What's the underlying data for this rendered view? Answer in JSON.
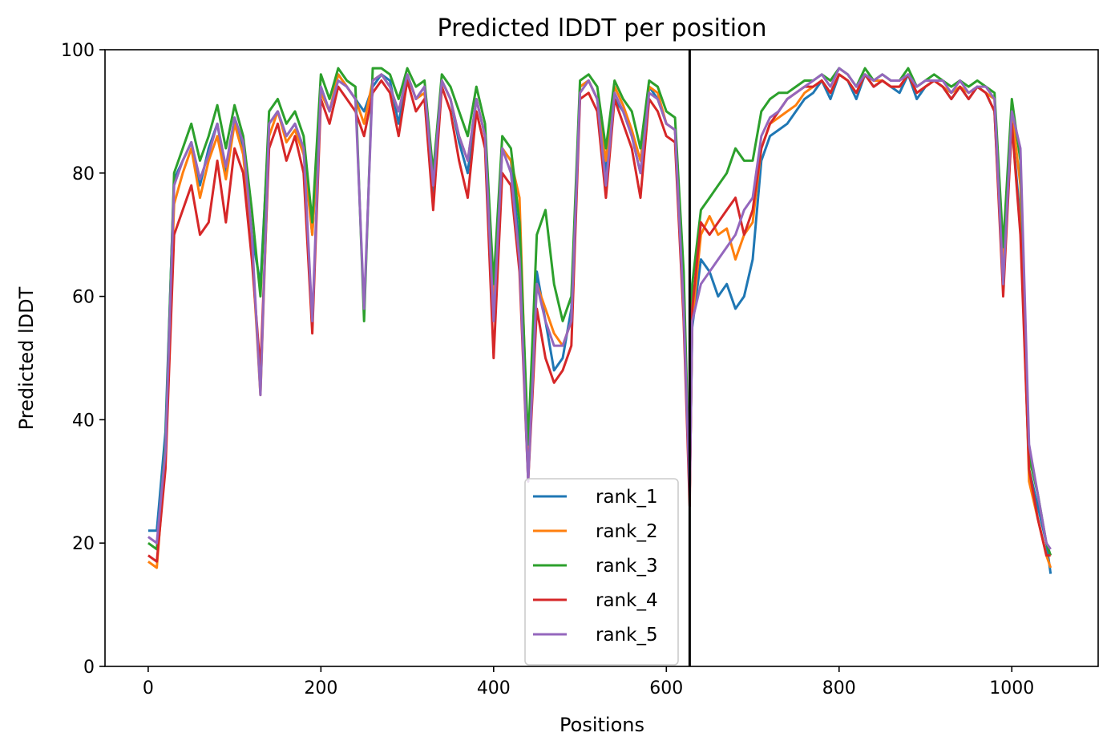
{
  "chart_data": {
    "type": "line",
    "title": "Predicted lDDT per position",
    "xlabel": "Positions",
    "ylabel": "Predicted lDDT",
    "xlim": [
      -50,
      1100
    ],
    "ylim": [
      0,
      100
    ],
    "xticks": [
      0,
      200,
      400,
      600,
      800,
      1000
    ],
    "yticks": [
      0,
      20,
      40,
      60,
      80,
      100
    ],
    "grid": false,
    "legend_position": "lower center",
    "chain_break_x": 627,
    "x": [
      0,
      10,
      20,
      30,
      40,
      50,
      60,
      70,
      80,
      90,
      100,
      110,
      120,
      130,
      140,
      150,
      160,
      170,
      180,
      190,
      200,
      210,
      220,
      230,
      240,
      250,
      260,
      270,
      280,
      290,
      300,
      310,
      320,
      330,
      340,
      350,
      360,
      370,
      380,
      390,
      400,
      410,
      420,
      430,
      440,
      450,
      460,
      470,
      480,
      490,
      500,
      510,
      520,
      530,
      540,
      550,
      560,
      570,
      580,
      590,
      600,
      610,
      620,
      627,
      630,
      640,
      650,
      660,
      670,
      680,
      690,
      700,
      710,
      720,
      730,
      740,
      750,
      760,
      770,
      780,
      790,
      800,
      810,
      820,
      830,
      840,
      850,
      860,
      870,
      880,
      890,
      900,
      910,
      920,
      930,
      940,
      950,
      960,
      970,
      980,
      990,
      1000,
      1010,
      1020,
      1030,
      1040,
      1045
    ],
    "series": [
      {
        "name": "rank_1",
        "color": "#1f77b4",
        "values": [
          22,
          22,
          38,
          79,
          82,
          85,
          78,
          84,
          88,
          80,
          89,
          84,
          70,
          62,
          88,
          90,
          86,
          88,
          84,
          70,
          94,
          90,
          96,
          94,
          92,
          90,
          94,
          96,
          95,
          88,
          96,
          92,
          94,
          76,
          95,
          92,
          85,
          80,
          92,
          86,
          60,
          84,
          82,
          68,
          34,
          64,
          56,
          48,
          50,
          58,
          94,
          95,
          92,
          80,
          92,
          90,
          86,
          80,
          94,
          92,
          88,
          87,
          60,
          28,
          55,
          66,
          64,
          60,
          62,
          58,
          60,
          66,
          82,
          86,
          87,
          88,
          90,
          92,
          93,
          95,
          92,
          96,
          95,
          92,
          96,
          94,
          95,
          94,
          93,
          96,
          92,
          94,
          95,
          94,
          92,
          94,
          92,
          94,
          93,
          90,
          62,
          88,
          72,
          32,
          26,
          20,
          15
        ]
      },
      {
        "name": "rank_2",
        "color": "#ff7f0e",
        "values": [
          17,
          16,
          34,
          75,
          80,
          84,
          76,
          82,
          86,
          79,
          88,
          83,
          68,
          44,
          86,
          90,
          85,
          87,
          83,
          70,
          93,
          90,
          96,
          94,
          92,
          88,
          95,
          96,
          94,
          90,
          96,
          92,
          93,
          78,
          95,
          92,
          86,
          82,
          92,
          86,
          58,
          84,
          82,
          76,
          32,
          62,
          58,
          54,
          52,
          56,
          94,
          95,
          92,
          82,
          94,
          91,
          87,
          82,
          94,
          93,
          88,
          87,
          60,
          28,
          56,
          70,
          73,
          70,
          71,
          66,
          70,
          72,
          84,
          88,
          89,
          90,
          91,
          93,
          94,
          95,
          93,
          96,
          95,
          93,
          96,
          95,
          95,
          94,
          94,
          96,
          93,
          94,
          95,
          94,
          93,
          94,
          93,
          94,
          93,
          92,
          64,
          90,
          78,
          30,
          24,
          18,
          16
        ]
      },
      {
        "name": "rank_3",
        "color": "#2ca02c",
        "values": [
          20,
          19,
          36,
          80,
          84,
          88,
          82,
          86,
          91,
          84,
          91,
          86,
          74,
          60,
          90,
          92,
          88,
          90,
          86,
          72,
          96,
          92,
          97,
          95,
          94,
          56,
          97,
          97,
          96,
          92,
          97,
          94,
          95,
          80,
          96,
          94,
          90,
          86,
          94,
          88,
          62,
          86,
          84,
          72,
          36,
          70,
          74,
          62,
          56,
          60,
          95,
          96,
          94,
          84,
          95,
          92,
          90,
          84,
          95,
          94,
          90,
          89,
          64,
          28,
          62,
          74,
          76,
          78,
          80,
          84,
          82,
          82,
          90,
          92,
          93,
          93,
          94,
          95,
          95,
          96,
          95,
          97,
          96,
          94,
          97,
          95,
          96,
          95,
          95,
          97,
          94,
          95,
          96,
          95,
          94,
          95,
          94,
          95,
          94,
          93,
          68,
          92,
          82,
          34,
          28,
          20,
          18
        ]
      },
      {
        "name": "rank_4",
        "color": "#d62728",
        "values": [
          18,
          17,
          32,
          70,
          74,
          78,
          70,
          72,
          82,
          72,
          84,
          80,
          66,
          48,
          84,
          88,
          82,
          86,
          80,
          54,
          92,
          88,
          94,
          92,
          90,
          86,
          93,
          95,
          93,
          86,
          95,
          90,
          92,
          74,
          94,
          90,
          82,
          76,
          90,
          84,
          50,
          80,
          78,
          64,
          30,
          58,
          50,
          46,
          48,
          52,
          92,
          93,
          90,
          76,
          92,
          88,
          84,
          76,
          92,
          90,
          86,
          85,
          56,
          26,
          58,
          72,
          70,
          72,
          74,
          76,
          70,
          74,
          84,
          88,
          90,
          92,
          93,
          94,
          94,
          95,
          93,
          96,
          95,
          93,
          96,
          94,
          95,
          94,
          94,
          96,
          93,
          94,
          95,
          94,
          92,
          94,
          92,
          94,
          93,
          90,
          60,
          88,
          70,
          32,
          24,
          18,
          18
        ]
      },
      {
        "name": "rank_5",
        "color": "#9467bd",
        "values": [
          21,
          20,
          35,
          78,
          82,
          85,
          79,
          83,
          88,
          81,
          89,
          85,
          70,
          44,
          88,
          90,
          86,
          88,
          84,
          56,
          94,
          90,
          95,
          94,
          92,
          58,
          95,
          96,
          94,
          90,
          96,
          92,
          94,
          78,
          95,
          92,
          86,
          82,
          92,
          86,
          56,
          84,
          80,
          66,
          30,
          62,
          56,
          52,
          52,
          56,
          93,
          95,
          92,
          78,
          93,
          90,
          86,
          80,
          93,
          92,
          88,
          87,
          58,
          28,
          56,
          62,
          64,
          66,
          68,
          70,
          74,
          76,
          86,
          89,
          90,
          92,
          93,
          94,
          95,
          96,
          94,
          97,
          96,
          94,
          96,
          95,
          96,
          95,
          95,
          96,
          94,
          95,
          95,
          95,
          93,
          95,
          93,
          94,
          94,
          92,
          62,
          90,
          84,
          36,
          28,
          20,
          19
        ]
      }
    ]
  }
}
